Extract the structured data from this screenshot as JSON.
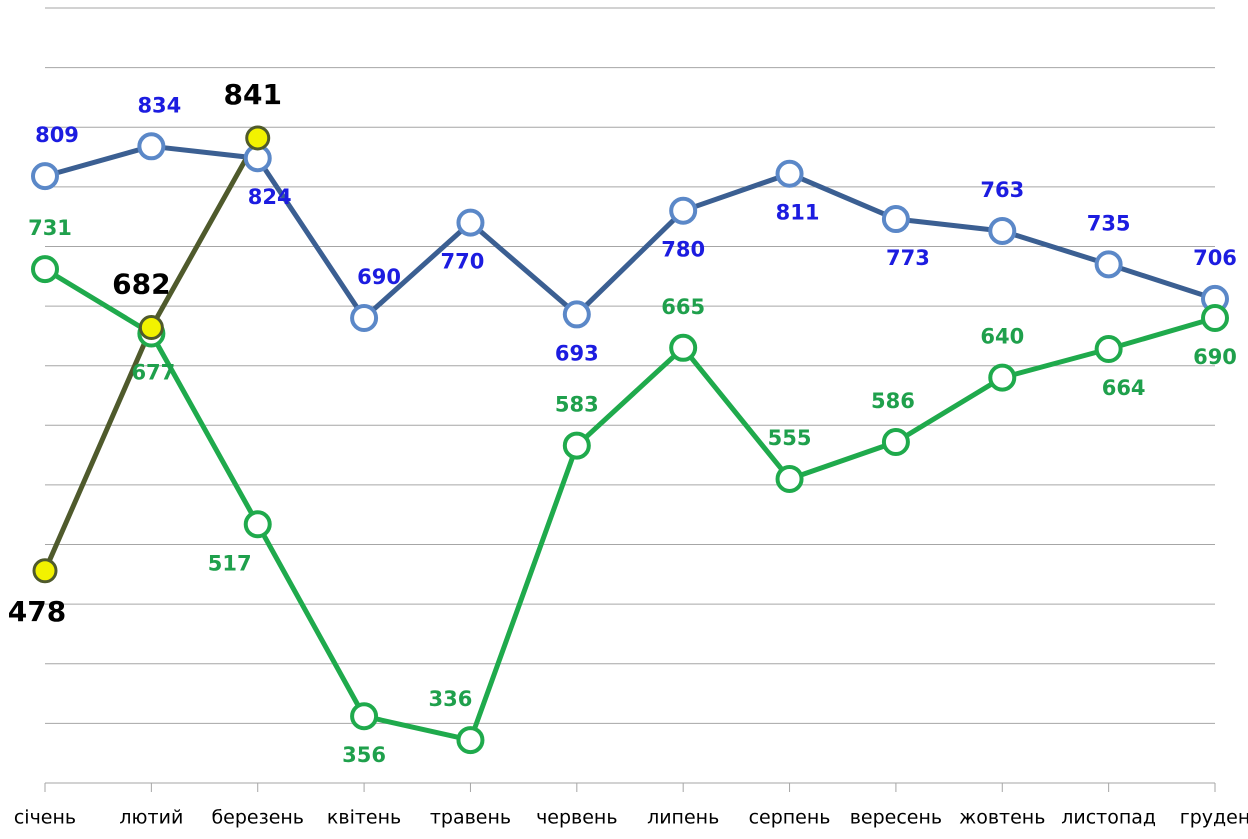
{
  "chart_data": {
    "type": "line",
    "categories": [
      "січень",
      "лютий",
      "березень",
      "квітень",
      "травень",
      "червень",
      "липень",
      "серпень",
      "вересень",
      "жовтень",
      "листопад",
      "груден"
    ],
    "series": [
      {
        "color": "#3b5f92",
        "marker_stroke": "#5b88c8",
        "marker_fill": "#ffffff",
        "label_color": "#1c1ce0",
        "values": [
          809,
          834,
          824,
          690,
          770,
          693,
          780,
          811,
          773,
          763,
          735,
          706
        ]
      },
      {
        "color": "#1faa4c",
        "marker_stroke": "#1faa4c",
        "marker_fill": "#ffffff",
        "label_color": "#1fa04c",
        "values": [
          731,
          677,
          517,
          356,
          336,
          583,
          665,
          555,
          586,
          640,
          664,
          690
        ]
      },
      {
        "color": "#4f5a2c",
        "marker_stroke": "#4f5a2c",
        "marker_fill": "#f2f200",
        "label_color": "#000000",
        "values": [
          478,
          682,
          841,
          null,
          null,
          null,
          null,
          null,
          null,
          null,
          null,
          null
        ]
      }
    ],
    "ylim": [
      300,
      950
    ],
    "yticks": [
      300,
      350,
      400,
      450,
      500,
      550,
      600,
      650,
      700,
      750,
      800,
      850,
      900,
      950
    ],
    "grid": true
  }
}
